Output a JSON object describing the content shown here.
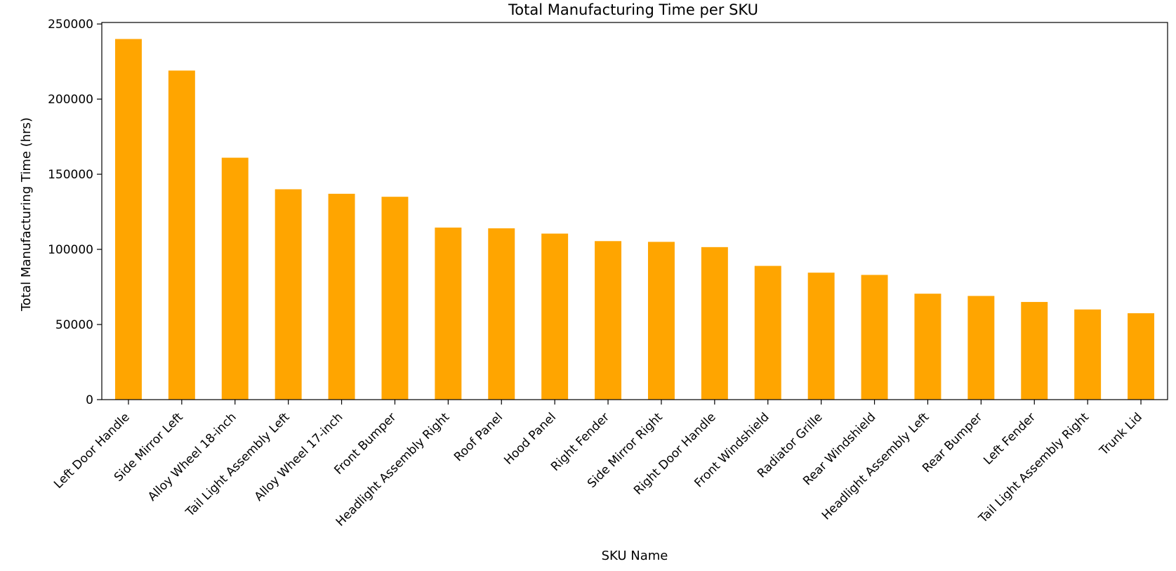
{
  "chart_data": {
    "type": "bar",
    "title": "Total Manufacturing Time per SKU",
    "xlabel": "SKU Name",
    "ylabel": "Total Manufacturing Time (hrs)",
    "ylim": [
      0,
      251000
    ],
    "yticks": [
      0,
      50000,
      100000,
      150000,
      200000,
      250000
    ],
    "grid": false,
    "legend": "none",
    "bar_color": "#ffa500",
    "categories": [
      "Left Door Handle",
      "Side Mirror Left",
      "Alloy Wheel 18-inch",
      "Tail Light Assembly Left",
      "Alloy Wheel 17-inch",
      "Front Bumper",
      "Headlight Assembly Right",
      "Roof Panel",
      "Hood Panel",
      "Right Fender",
      "Side Mirror Right",
      "Right Door Handle",
      "Front Windshield",
      "Radiator Grille",
      "Rear Windshield",
      "Headlight Assembly Left",
      "Rear Bumper",
      "Left Fender",
      "Tail Light Assembly Right",
      "Trunk Lid"
    ],
    "values": [
      240000,
      219000,
      161000,
      140000,
      137000,
      135000,
      114500,
      114000,
      110500,
      105500,
      105000,
      101500,
      89000,
      84500,
      83000,
      70500,
      69000,
      65000,
      60000,
      57500
    ]
  }
}
